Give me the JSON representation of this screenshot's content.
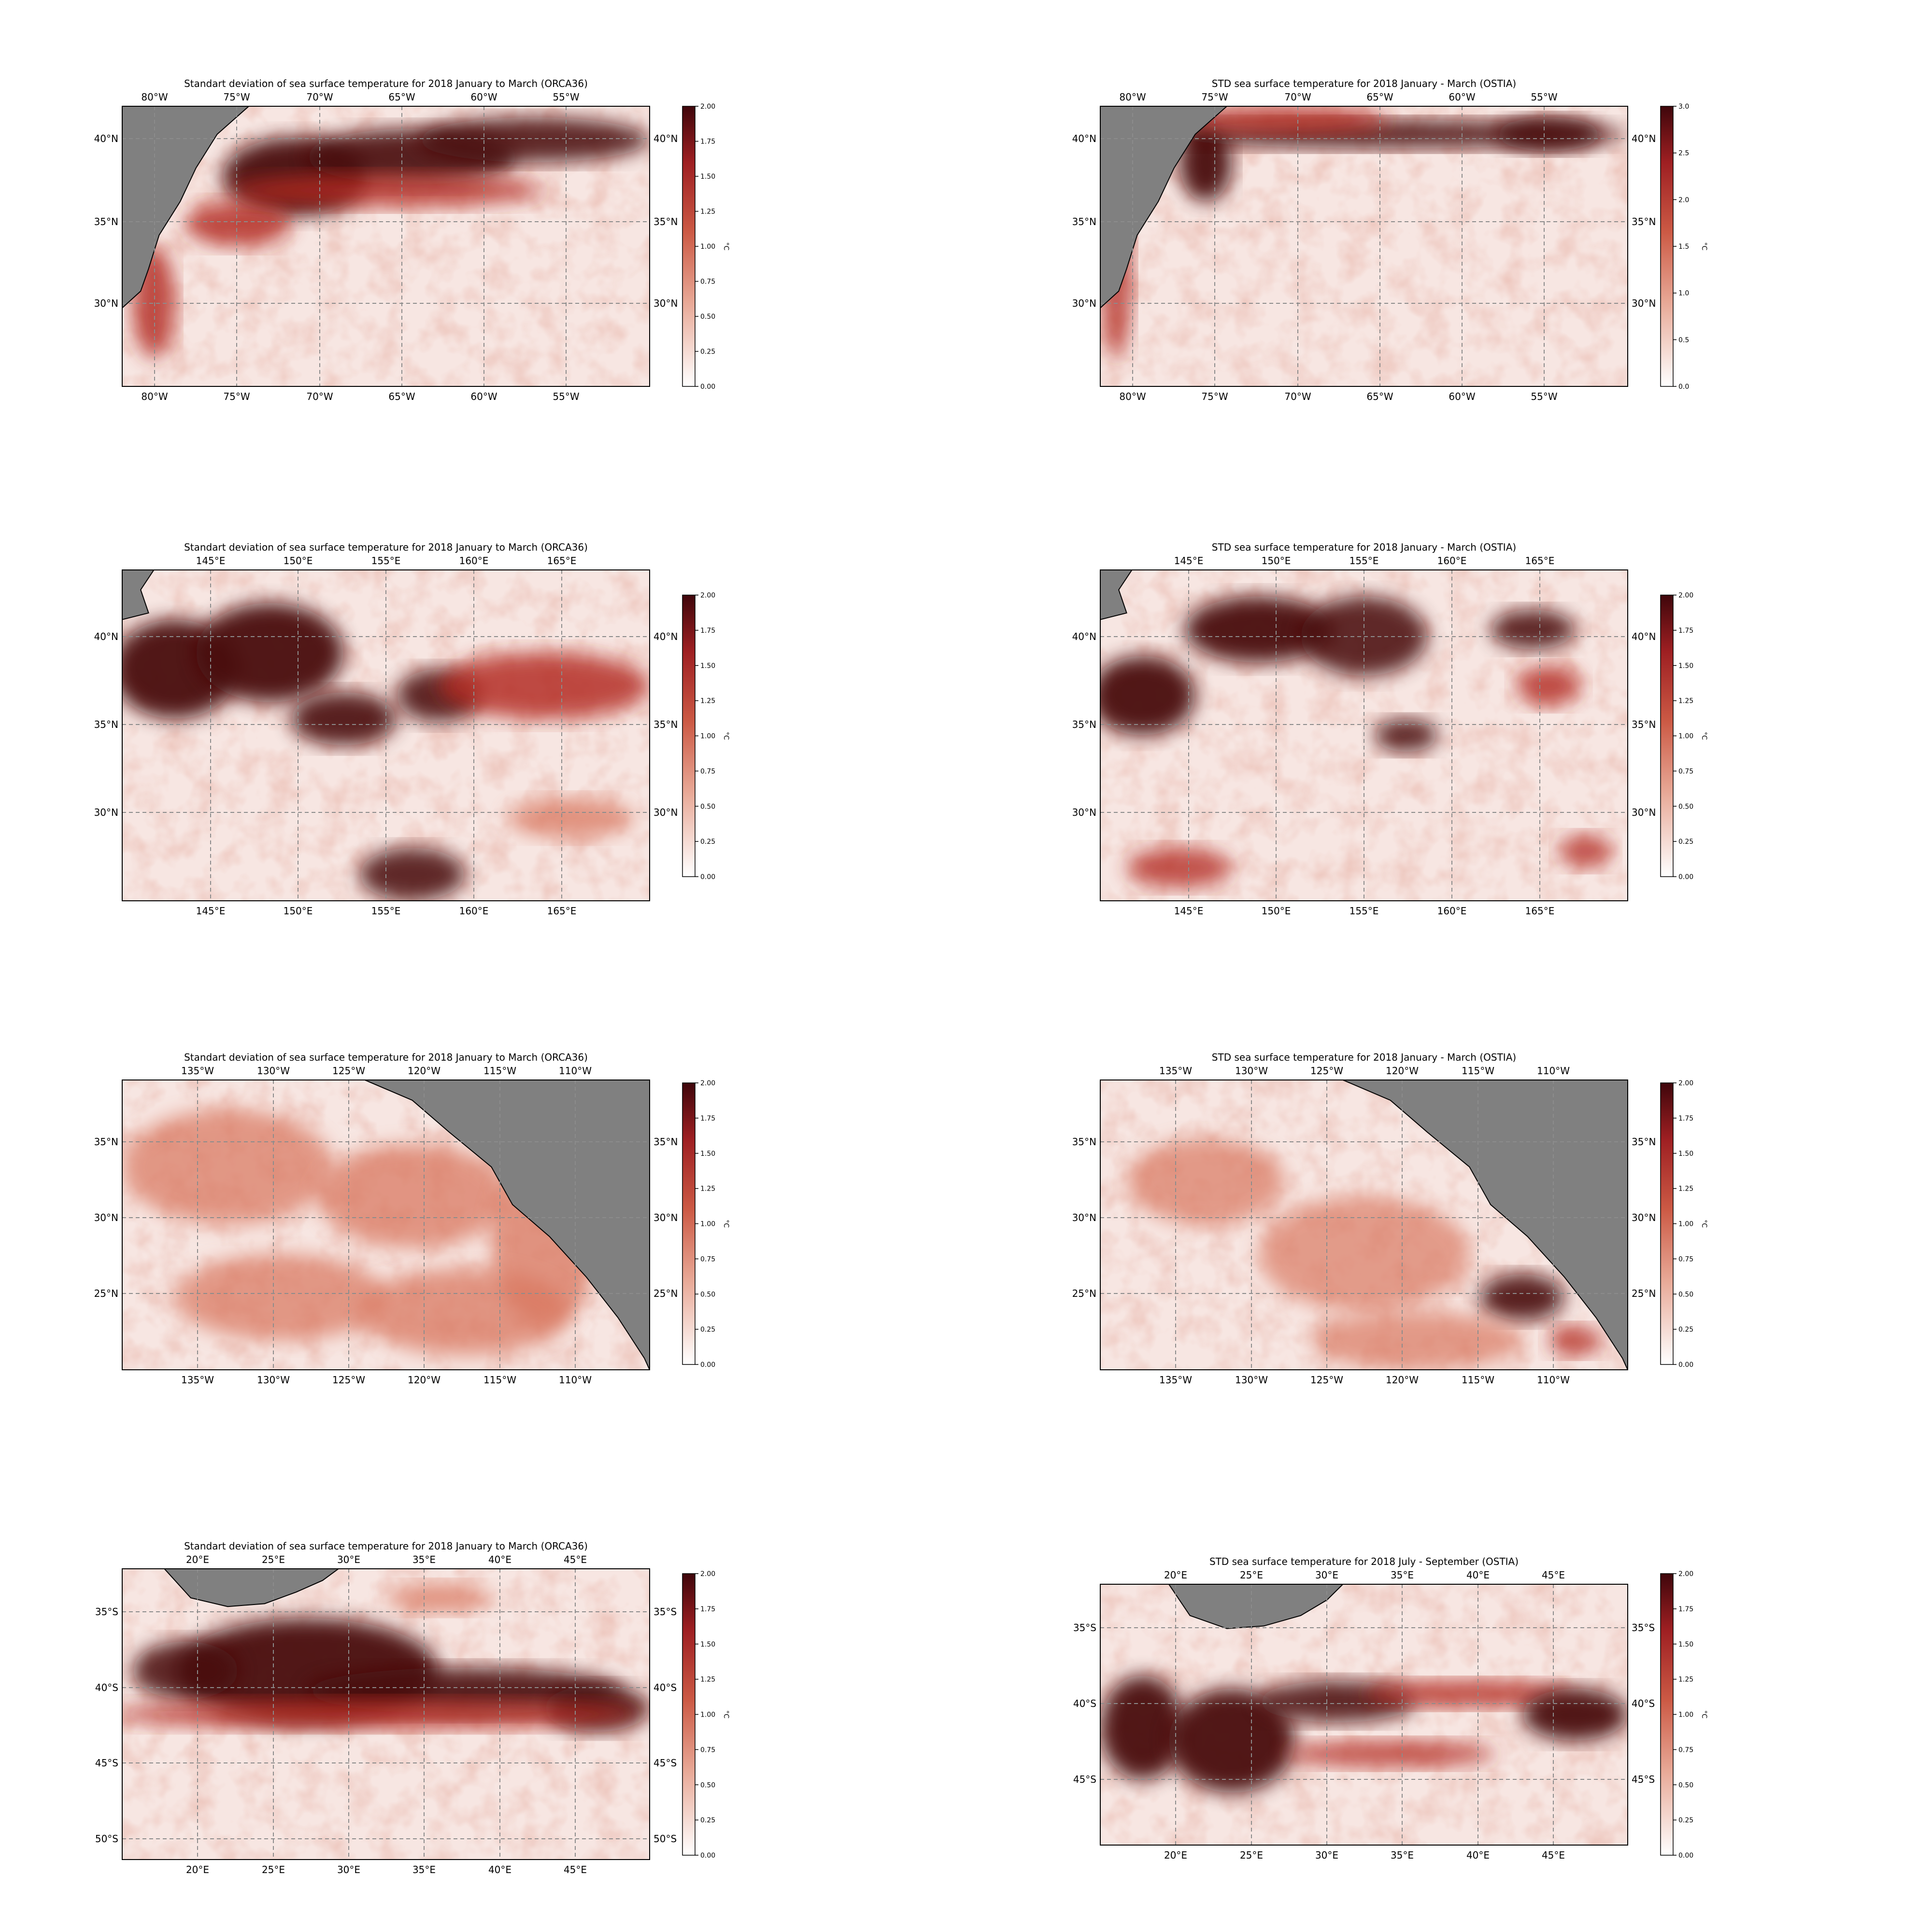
{
  "panels": [
    {
      "id": "gulf-stream-orca36",
      "title": "Standart deviation of sea surface temperature for 2018 January to March (ORCA36)",
      "x_ticks": [
        "80°W",
        "75°W",
        "70°W",
        "65°W",
        "60°W",
        "55°W"
      ],
      "y_ticks": [
        "40°N",
        "35°N",
        "30°N"
      ],
      "colorbar": {
        "ticks": [
          "0.00",
          "0.25",
          "0.50",
          "0.75",
          "1.00",
          "1.25",
          "1.50",
          "1.75",
          "2.00"
        ],
        "label": "°C",
        "min": 0,
        "max": 2
      }
    },
    {
      "id": "gulf-stream-ostia",
      "title": "STD sea surface temperature for 2018 January - March (OSTIA)",
      "x_ticks": [
        "80°W",
        "75°W",
        "70°W",
        "65°W",
        "60°W",
        "55°W"
      ],
      "y_ticks": [
        "40°N",
        "35°N",
        "30°N"
      ],
      "colorbar": {
        "ticks": [
          "0.0",
          "0.5",
          "1.0",
          "1.5",
          "2.0",
          "2.5",
          "3.0"
        ],
        "label": "°C",
        "min": 0,
        "max": 3
      }
    },
    {
      "id": "kuroshio-orca36",
      "title": "Standart deviation of sea surface temperature for 2018 January to March (ORCA36)",
      "x_ticks": [
        "145°E",
        "150°E",
        "155°E",
        "160°E",
        "165°E"
      ],
      "y_ticks": [
        "40°N",
        "35°N",
        "30°N"
      ],
      "colorbar": {
        "ticks": [
          "0.00",
          "0.25",
          "0.50",
          "0.75",
          "1.00",
          "1.25",
          "1.50",
          "1.75",
          "2.00"
        ],
        "label": "°C",
        "min": 0,
        "max": 2
      }
    },
    {
      "id": "kuroshio-ostia",
      "title": "STD sea surface temperature for 2018 January - March (OSTIA)",
      "x_ticks": [
        "145°E",
        "150°E",
        "155°E",
        "160°E",
        "165°E"
      ],
      "y_ticks": [
        "40°N",
        "35°N",
        "30°N"
      ],
      "colorbar": {
        "ticks": [
          "0.00",
          "0.25",
          "0.50",
          "0.75",
          "1.00",
          "1.25",
          "1.50",
          "1.75",
          "2.00"
        ],
        "label": "°C",
        "min": 0,
        "max": 2
      }
    },
    {
      "id": "california-orca36",
      "title": "Standart deviation of sea surface temperature for 2018 January to March (ORCA36)",
      "x_ticks": [
        "135°W",
        "130°W",
        "125°W",
        "120°W",
        "115°W",
        "110°W"
      ],
      "y_ticks": [
        "35°N",
        "30°N",
        "25°N"
      ],
      "colorbar": {
        "ticks": [
          "0.00",
          "0.25",
          "0.50",
          "0.75",
          "1.00",
          "1.25",
          "1.50",
          "1.75",
          "2.00"
        ],
        "label": "°C",
        "min": 0,
        "max": 2
      }
    },
    {
      "id": "california-ostia",
      "title": "STD sea surface temperature for 2018 January - March (OSTIA)",
      "x_ticks": [
        "135°W",
        "130°W",
        "125°W",
        "120°W",
        "115°W",
        "110°W"
      ],
      "y_ticks": [
        "35°N",
        "30°N",
        "25°N"
      ],
      "colorbar": {
        "ticks": [
          "0.00",
          "0.25",
          "0.50",
          "0.75",
          "1.00",
          "1.25",
          "1.50",
          "1.75",
          "2.00"
        ],
        "label": "°C",
        "min": 0,
        "max": 2
      }
    },
    {
      "id": "agulhas-orca36",
      "title": "Standart deviation of sea surface temperature for 2018 January to March (ORCA36)",
      "x_ticks": [
        "20°E",
        "25°E",
        "30°E",
        "35°E",
        "40°E",
        "45°E"
      ],
      "y_ticks": [
        "35°S",
        "40°S",
        "45°S",
        "50°S"
      ],
      "colorbar": {
        "ticks": [
          "0.00",
          "0.25",
          "0.50",
          "0.75",
          "1.00",
          "1.25",
          "1.50",
          "1.75",
          "2.00"
        ],
        "label": "°C",
        "min": 0,
        "max": 2
      }
    },
    {
      "id": "agulhas-ostia",
      "title": "STD sea surface temperature for 2018 July - September (OSTIA)",
      "x_ticks": [
        "20°E",
        "25°E",
        "30°E",
        "35°E",
        "40°E",
        "45°E"
      ],
      "y_ticks": [
        "35°S",
        "40°S",
        "45°S"
      ],
      "colorbar": {
        "ticks": [
          "0.00",
          "0.25",
          "0.50",
          "0.75",
          "1.00",
          "1.25",
          "1.50",
          "1.75",
          "2.00"
        ],
        "label": "°C",
        "min": 0,
        "max": 2
      }
    }
  ],
  "colors": {
    "land": "#808080",
    "grid": "#8c8c8c",
    "cmap_low": "#f7e6e2",
    "cmap_mid": "#d9775f",
    "cmap_high": "#b32a22",
    "cmap_max": "#4a0a0e"
  }
}
